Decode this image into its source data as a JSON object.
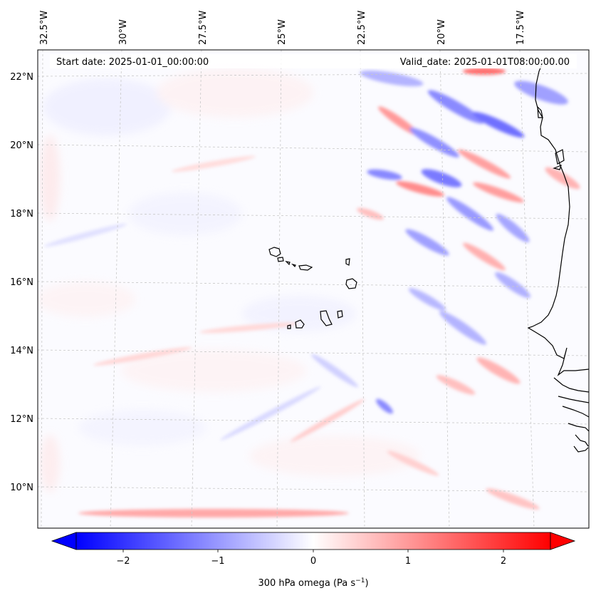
{
  "header": {
    "start_date": "Start date: 2025-01-01_00:00:00",
    "valid_date": "Valid_date: 2025-01-01T08:00:00.00"
  },
  "axes": {
    "lon_labels": [
      "32.5°W",
      "30°W",
      "27.5°W",
      "25°W",
      "22.5°W",
      "20°W",
      "17.5°W"
    ],
    "lat_labels": [
      "22°N",
      "20°N",
      "18°N",
      "16°N",
      "14°N",
      "12°N",
      "10°N"
    ]
  },
  "colorbar": {
    "label_main": "300 hPa omega (Pa s",
    "label_exp": "−1",
    "label_close": ")",
    "ticks": [
      "−2",
      "−1",
      "0",
      "1",
      "2"
    ],
    "vmin": -2.5,
    "vmax": 2.5,
    "color_low": "#0000ff",
    "color_mid": "#ffffff",
    "color_high": "#ff0000"
  },
  "colors": {
    "coastline": "#000000",
    "gridline": "#c8c8c8"
  }
}
